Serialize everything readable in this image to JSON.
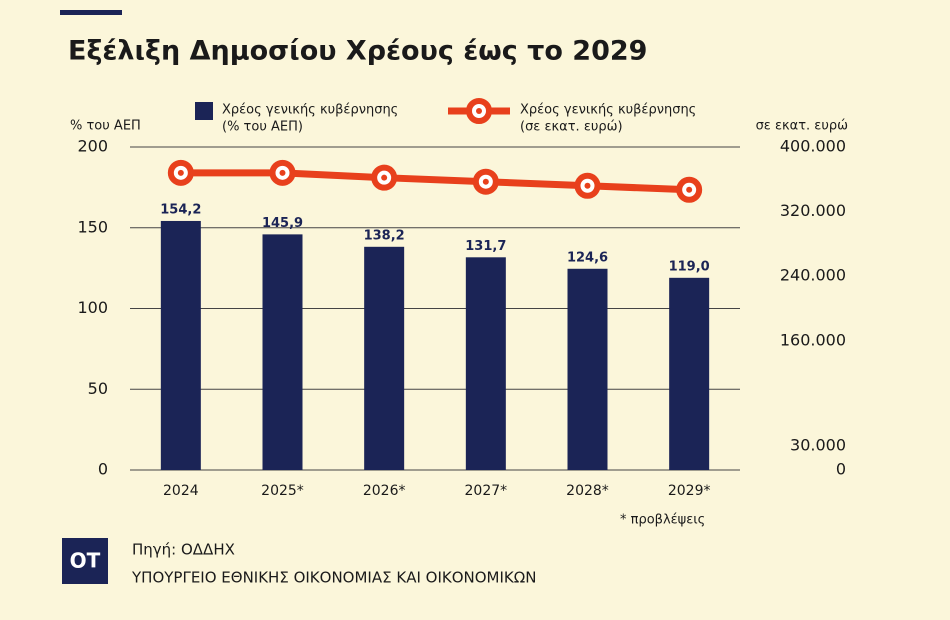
{
  "chart_data": {
    "type": "bar_line",
    "title": "Εξέλιξη Δημοσίου Χρέους έως το 2029",
    "y_label": "% του ΑΕΠ",
    "y2_label": "σε εκατ. ευρώ",
    "categories": [
      "2024",
      "2025*",
      "2026*",
      "2027*",
      "2028*",
      "2029*"
    ],
    "series": [
      {
        "name": "Χρέος γενικής κυβέρνησης",
        "unit_label": "(% του ΑΕΠ)",
        "type": "bar",
        "color": "#1b2456",
        "values": [
          154.2,
          145.9,
          138.2,
          131.7,
          124.6,
          119.0
        ],
        "value_labels": [
          "154,2",
          "145,9",
          "138,2",
          "131,7",
          "124,6",
          "119,0"
        ]
      },
      {
        "name": "Χρέος γενικής κυβέρνησης",
        "unit_label": "(σε εκατ. ευρώ)",
        "type": "line",
        "color": "#e8401c",
        "axis": "y2",
        "values": [
          368000,
          368000,
          362000,
          357000,
          352000,
          347000
        ]
      }
    ],
    "ylim": [
      0,
      200
    ],
    "yticks": [
      0,
      50,
      100,
      150,
      200
    ],
    "y2lim": [
      0,
      400000
    ],
    "y2ticks": [
      0,
      {
        "value": 30000,
        "label": "30.000"
      },
      {
        "value": 160000,
        "label": "160.000"
      },
      {
        "value": 240000,
        "label": "240.000"
      },
      {
        "value": 320000,
        "label": "320.000"
      },
      {
        "value": 400000,
        "label": "400.000"
      }
    ],
    "grid": true,
    "footnote": "*  προβλέψεις"
  },
  "footer": {
    "logo": "ΟΤ",
    "source": "Πηγή: ΟΔΔΗΧ",
    "ministry": "ΥΠΟΥΡΓΕΙΟ ΕΘΝΙΚΗΣ ΟΙΚΟΝΟΜΙΑΣ ΚΑΙ ΟΙΚΟΝΟΜΙΚΩΝ"
  }
}
